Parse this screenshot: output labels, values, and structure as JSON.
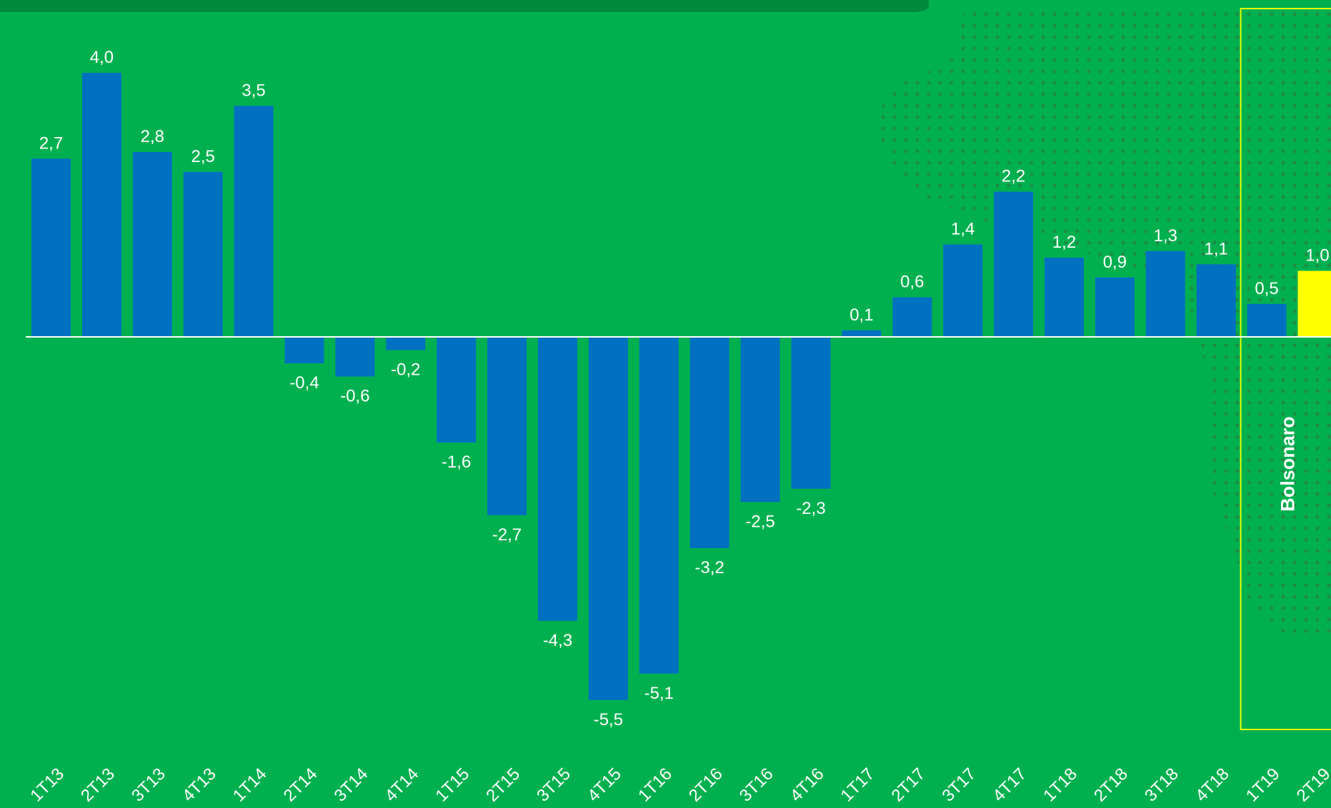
{
  "colors": {
    "background": "#00b04f",
    "bar": "#0070c0",
    "highlight_bar": "#ffff00",
    "highlight_box": "#e6ff00",
    "label": "#ffffff",
    "dots": "#1e8c47",
    "header_band": "#008a3c"
  },
  "chart_data": {
    "type": "bar",
    "categories": [
      "1T13",
      "2T13",
      "3T13",
      "4T13",
      "1T14",
      "2T14",
      "3T14",
      "4T14",
      "1T15",
      "2T15",
      "3T15",
      "4T15",
      "1T16",
      "2T16",
      "3T16",
      "4T16",
      "1T17",
      "2T17",
      "3T17",
      "4T17",
      "1T18",
      "2T18",
      "3T18",
      "4T18",
      "1T19",
      "2T19"
    ],
    "values": [
      2.7,
      4.0,
      2.8,
      2.5,
      3.5,
      -0.4,
      -0.6,
      -0.2,
      -1.6,
      -2.7,
      -4.3,
      -5.5,
      -5.1,
      -3.2,
      -2.5,
      -2.3,
      0.1,
      0.6,
      1.4,
      2.2,
      1.2,
      0.9,
      1.3,
      1.1,
      0.5,
      1.0
    ],
    "value_labels": [
      "2,7",
      "4,0",
      "2,8",
      "2,5",
      "3,5",
      "-0,4",
      "-0,6",
      "-0,2",
      "-1,6",
      "-2,7",
      "-4,3",
      "-5,5",
      "-5,1",
      "-3,2",
      "-2,5",
      "-2,3",
      "0,1",
      "0,6",
      "1,4",
      "2,2",
      "1,2",
      "0,9",
      "1,3",
      "1,1",
      "0,5",
      "1,0"
    ],
    "highlight_category": "2T19",
    "title": "",
    "xlabel": "",
    "ylabel": "",
    "grid": false,
    "legend": "none",
    "annotation": {
      "text": "Bolsonaro",
      "categories": [
        "1T19",
        "2T19"
      ]
    }
  }
}
